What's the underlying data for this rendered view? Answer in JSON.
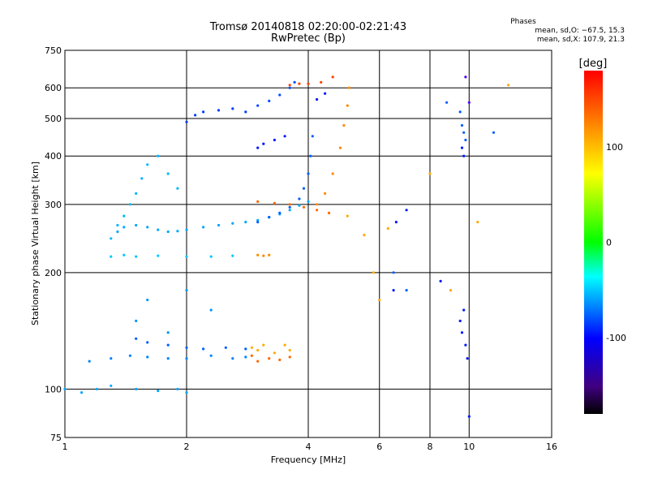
{
  "chart_data": {
    "type": "scatter",
    "title": "Tromsø 20140818 02:20:00-02:21:43",
    "subtitle": "RwPretec (Bp)",
    "xlabel": "Frequency [MHz]",
    "ylabel": "Stationary phase Virtual Height [km]",
    "x_scale": "log",
    "y_scale": "log",
    "xlim": [
      1,
      16
    ],
    "ylim": [
      75,
      750
    ],
    "x_ticks": [
      1,
      2,
      4,
      6,
      8,
      10,
      16
    ],
    "y_ticks": [
      75,
      100,
      200,
      300,
      400,
      500,
      600,
      750
    ],
    "x_tick_labels": [
      "1",
      "2",
      "4",
      "6",
      "8",
      "10",
      "16"
    ],
    "y_tick_labels": [
      "75",
      "100",
      "200",
      "300",
      "400",
      "500",
      "600",
      "750"
    ],
    "grid": true,
    "colorbar": {
      "label": "[deg]",
      "range": [
        -180,
        180
      ],
      "ticks": [
        100,
        0,
        -100
      ],
      "tick_labels": [
        "100",
        "0",
        "-100"
      ]
    },
    "stats": {
      "title": "Phases",
      "o_line": "mean, sd,O: −67.5, 15.3",
      "x_line": "mean, sd,X: 107.9, 21.3"
    },
    "series": [
      {
        "phase": -70,
        "x": [
          1.0,
          1.1,
          1.2,
          1.3,
          1.5,
          1.7,
          1.9,
          2.0
        ],
        "y": [
          100,
          98,
          100,
          102,
          100,
          99,
          100,
          98
        ]
      },
      {
        "phase": -80,
        "x": [
          1.15,
          1.3,
          1.45,
          1.6,
          1.8,
          2.0,
          2.3,
          2.6,
          2.8
        ],
        "y": [
          118,
          120,
          122,
          121,
          120,
          120,
          122,
          120,
          121
        ]
      },
      {
        "phase": -90,
        "x": [
          1.5,
          1.6,
          1.8,
          2.0,
          2.2,
          2.5,
          2.8
        ],
        "y": [
          135,
          132,
          130,
          128,
          127,
          128,
          127
        ]
      },
      {
        "phase": 130,
        "x": [
          2.9,
          3.0,
          3.1,
          3.3,
          3.5,
          3.6
        ],
        "y": [
          128,
          126,
          130,
          124,
          130,
          126
        ]
      },
      {
        "phase": 150,
        "x": [
          2.9,
          3.0,
          3.2,
          3.4,
          3.6
        ],
        "y": [
          122,
          118,
          120,
          119,
          121
        ]
      },
      {
        "phase": -60,
        "x": [
          1.3,
          1.4,
          1.5,
          1.7,
          2.0,
          2.3,
          2.6
        ],
        "y": [
          220,
          222,
          220,
          221,
          220,
          220,
          221
        ]
      },
      {
        "phase": 140,
        "x": [
          3.0,
          3.1,
          3.2
        ],
        "y": [
          222,
          221,
          222
        ]
      },
      {
        "phase": -65,
        "x": [
          1.3,
          1.35,
          1.4,
          1.45,
          1.5,
          1.55,
          1.6,
          1.7,
          1.8,
          1.9
        ],
        "y": [
          245,
          265,
          280,
          300,
          320,
          350,
          380,
          400,
          360,
          330
        ]
      },
      {
        "phase": -70,
        "x": [
          1.35,
          1.4,
          1.5,
          1.6,
          1.7,
          1.8,
          1.9,
          2.0,
          2.2,
          2.4,
          2.6,
          2.8,
          3.0,
          3.2,
          3.4,
          3.6,
          3.8,
          4.0
        ],
        "y": [
          255,
          262,
          265,
          262,
          258,
          255,
          256,
          258,
          262,
          265,
          268,
          270,
          273,
          278,
          283,
          290,
          298,
          305
        ]
      },
      {
        "phase": -90,
        "x": [
          3.0,
          3.2,
          3.4,
          3.6,
          3.8,
          3.9,
          4.0,
          4.05,
          4.1
        ],
        "y": [
          270,
          278,
          285,
          295,
          310,
          330,
          360,
          400,
          450
        ]
      },
      {
        "phase": 150,
        "x": [
          3.0,
          3.3,
          3.6,
          3.9,
          4.2,
          4.5
        ],
        "y": [
          305,
          302,
          300,
          295,
          290,
          285
        ]
      },
      {
        "phase": 140,
        "x": [
          4.2,
          4.4,
          4.6,
          4.8,
          4.9,
          5.0,
          5.05
        ],
        "y": [
          300,
          320,
          360,
          420,
          480,
          540,
          600
        ]
      },
      {
        "phase": -100,
        "x": [
          2.0,
          2.1,
          2.2,
          2.4,
          2.6,
          2.8
        ],
        "y": [
          490,
          510,
          520,
          525,
          530,
          520
        ]
      },
      {
        "phase": -95,
        "x": [
          3.0,
          3.2,
          3.4,
          3.6,
          3.7
        ],
        "y": [
          540,
          555,
          575,
          600,
          620
        ]
      },
      {
        "phase": 160,
        "x": [
          3.6,
          3.8,
          4.0,
          4.3,
          4.6
        ],
        "y": [
          610,
          615,
          615,
          620,
          640
        ]
      },
      {
        "phase": -110,
        "x": [
          3.0,
          3.1,
          3.3,
          3.5,
          4.2,
          4.4
        ],
        "y": [
          420,
          430,
          440,
          450,
          560,
          580
        ]
      },
      {
        "phase": -75,
        "x": [
          1.5,
          1.6,
          1.8,
          2.0,
          2.3
        ],
        "y": [
          150,
          170,
          140,
          180,
          160
        ]
      },
      {
        "phase": -110,
        "x": [
          6.5,
          7.0,
          6.6,
          8.5,
          9.5,
          9.6,
          9.7,
          9.8,
          9.9,
          10.0,
          9.6,
          9.7
        ],
        "y": [
          180,
          290,
          270,
          190,
          150,
          140,
          160,
          130,
          120,
          85,
          420,
          400
        ]
      },
      {
        "phase": -90,
        "x": [
          8.8,
          9.5,
          9.6,
          9.7,
          9.8,
          11.5,
          6.5,
          7.0
        ],
        "y": [
          550,
          520,
          480,
          460,
          440,
          460,
          200,
          180
        ]
      },
      {
        "phase": 130,
        "x": [
          5.0,
          5.5,
          5.8,
          6.0,
          6.3,
          8.0,
          9.0,
          10.5,
          12.5
        ],
        "y": [
          280,
          250,
          200,
          170,
          260,
          360,
          180,
          270,
          610
        ]
      },
      {
        "phase": -140,
        "x": [
          9.8,
          10.0
        ],
        "y": [
          640,
          550
        ]
      }
    ]
  }
}
